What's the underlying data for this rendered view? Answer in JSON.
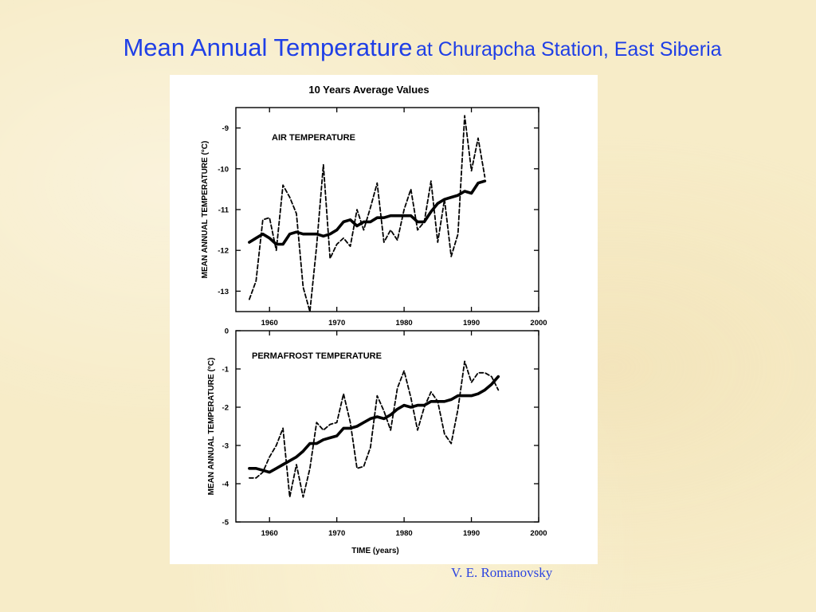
{
  "slide": {
    "title_main": "Mean Annual Temperature",
    "title_sub": "at Churapcha Station, East Siberia",
    "credit": "V. E. Romanovsky"
  },
  "colors": {
    "title": "#1f3fe6",
    "credit": "#2d45e0",
    "ink": "#000000",
    "background": "#f7ecc8"
  },
  "figure_title": "10 Years Average Values",
  "chart_data": [
    {
      "type": "line",
      "panel_label": "AIR TEMPERATURE",
      "xlabel": "",
      "ylabel": "MEAN ANNUAL TEMPERATURE (°C)",
      "xlim": [
        1955,
        2000
      ],
      "ylim": [
        -13.5,
        -8.5
      ],
      "xticks": [
        1960,
        1970,
        1980,
        1990,
        2000
      ],
      "yticks": [
        -9,
        -10,
        -11,
        -12,
        -13
      ],
      "series": [
        {
          "style": "dashed",
          "x": [
            1957,
            1958,
            1959,
            1960,
            1961,
            1962,
            1963,
            1964,
            1965,
            1966,
            1967,
            1968,
            1969,
            1970,
            1971,
            1972,
            1973,
            1974,
            1975,
            1976,
            1977,
            1978,
            1979,
            1980,
            1981,
            1982,
            1983,
            1984,
            1985,
            1986,
            1987,
            1988,
            1989,
            1990,
            1991,
            1992
          ],
          "y": [
            -13.2,
            -12.75,
            -11.25,
            -11.2,
            -12.0,
            -10.4,
            -10.7,
            -11.1,
            -12.9,
            -13.5,
            -11.9,
            -9.9,
            -12.2,
            -11.85,
            -11.7,
            -11.9,
            -11.0,
            -11.5,
            -10.95,
            -10.35,
            -11.8,
            -11.5,
            -11.75,
            -11.0,
            -10.5,
            -11.5,
            -11.3,
            -10.3,
            -11.8,
            -10.75,
            -12.15,
            -11.6,
            -8.7,
            -10.05,
            -9.25,
            -10.2
          ]
        },
        {
          "style": "solid",
          "x": [
            1957,
            1958,
            1959,
            1960,
            1961,
            1962,
            1963,
            1964,
            1965,
            1966,
            1967,
            1968,
            1969,
            1970,
            1971,
            1972,
            1973,
            1974,
            1975,
            1976,
            1977,
            1978,
            1979,
            1980,
            1981,
            1982,
            1983,
            1984,
            1985,
            1986,
            1987,
            1988,
            1989,
            1990,
            1991,
            1992
          ],
          "y": [
            -11.8,
            -11.7,
            -11.6,
            -11.7,
            -11.85,
            -11.85,
            -11.6,
            -11.55,
            -11.6,
            -11.6,
            -11.6,
            -11.65,
            -11.6,
            -11.5,
            -11.3,
            -11.25,
            -11.4,
            -11.3,
            -11.3,
            -11.2,
            -11.2,
            -11.15,
            -11.15,
            -11.15,
            -11.15,
            -11.3,
            -11.3,
            -11.05,
            -10.85,
            -10.75,
            -10.7,
            -10.65,
            -10.55,
            -10.6,
            -10.35,
            -10.3
          ]
        }
      ]
    },
    {
      "type": "line",
      "panel_label": "PERMAFROST TEMPERATURE",
      "xlabel": "TIME (years)",
      "ylabel": "MEAN ANNUAL TEMPERATURE (°C)",
      "xlim": [
        1955,
        2000
      ],
      "ylim": [
        -5,
        0
      ],
      "xticks": [
        1960,
        1970,
        1980,
        1990,
        2000
      ],
      "yticks": [
        0,
        -1,
        -2,
        -3,
        -4,
        -5
      ],
      "series": [
        {
          "style": "dashed",
          "x": [
            1957,
            1958,
            1959,
            1960,
            1961,
            1962,
            1963,
            1964,
            1965,
            1966,
            1967,
            1968,
            1969,
            1970,
            1971,
            1972,
            1973,
            1974,
            1975,
            1976,
            1977,
            1978,
            1979,
            1980,
            1981,
            1982,
            1983,
            1984,
            1985,
            1986,
            1987,
            1988,
            1989,
            1990,
            1991,
            1992,
            1993,
            1994
          ],
          "y": [
            -3.85,
            -3.85,
            -3.7,
            -3.3,
            -3.0,
            -2.55,
            -4.35,
            -3.5,
            -4.35,
            -3.6,
            -2.4,
            -2.6,
            -2.45,
            -2.4,
            -1.65,
            -2.4,
            -3.6,
            -3.55,
            -3.05,
            -1.7,
            -2.1,
            -2.6,
            -1.5,
            -1.05,
            -1.75,
            -2.6,
            -2.0,
            -1.6,
            -1.85,
            -2.7,
            -2.95,
            -2.05,
            -0.8,
            -1.35,
            -1.1,
            -1.1,
            -1.2,
            -1.55
          ]
        },
        {
          "style": "solid",
          "x": [
            1957,
            1958,
            1959,
            1960,
            1961,
            1962,
            1963,
            1964,
            1965,
            1966,
            1967,
            1968,
            1969,
            1970,
            1971,
            1972,
            1973,
            1974,
            1975,
            1976,
            1977,
            1978,
            1979,
            1980,
            1981,
            1982,
            1983,
            1984,
            1985,
            1986,
            1987,
            1988,
            1989,
            1990,
            1991,
            1992,
            1993,
            1994
          ],
          "y": [
            -3.6,
            -3.6,
            -3.65,
            -3.7,
            -3.6,
            -3.5,
            -3.4,
            -3.3,
            -3.15,
            -2.95,
            -2.95,
            -2.85,
            -2.8,
            -2.75,
            -2.55,
            -2.55,
            -2.5,
            -2.4,
            -2.3,
            -2.25,
            -2.3,
            -2.2,
            -2.05,
            -1.95,
            -2.0,
            -1.95,
            -1.95,
            -1.85,
            -1.85,
            -1.85,
            -1.8,
            -1.7,
            -1.7,
            -1.7,
            -1.65,
            -1.55,
            -1.4,
            -1.2
          ]
        }
      ]
    }
  ]
}
